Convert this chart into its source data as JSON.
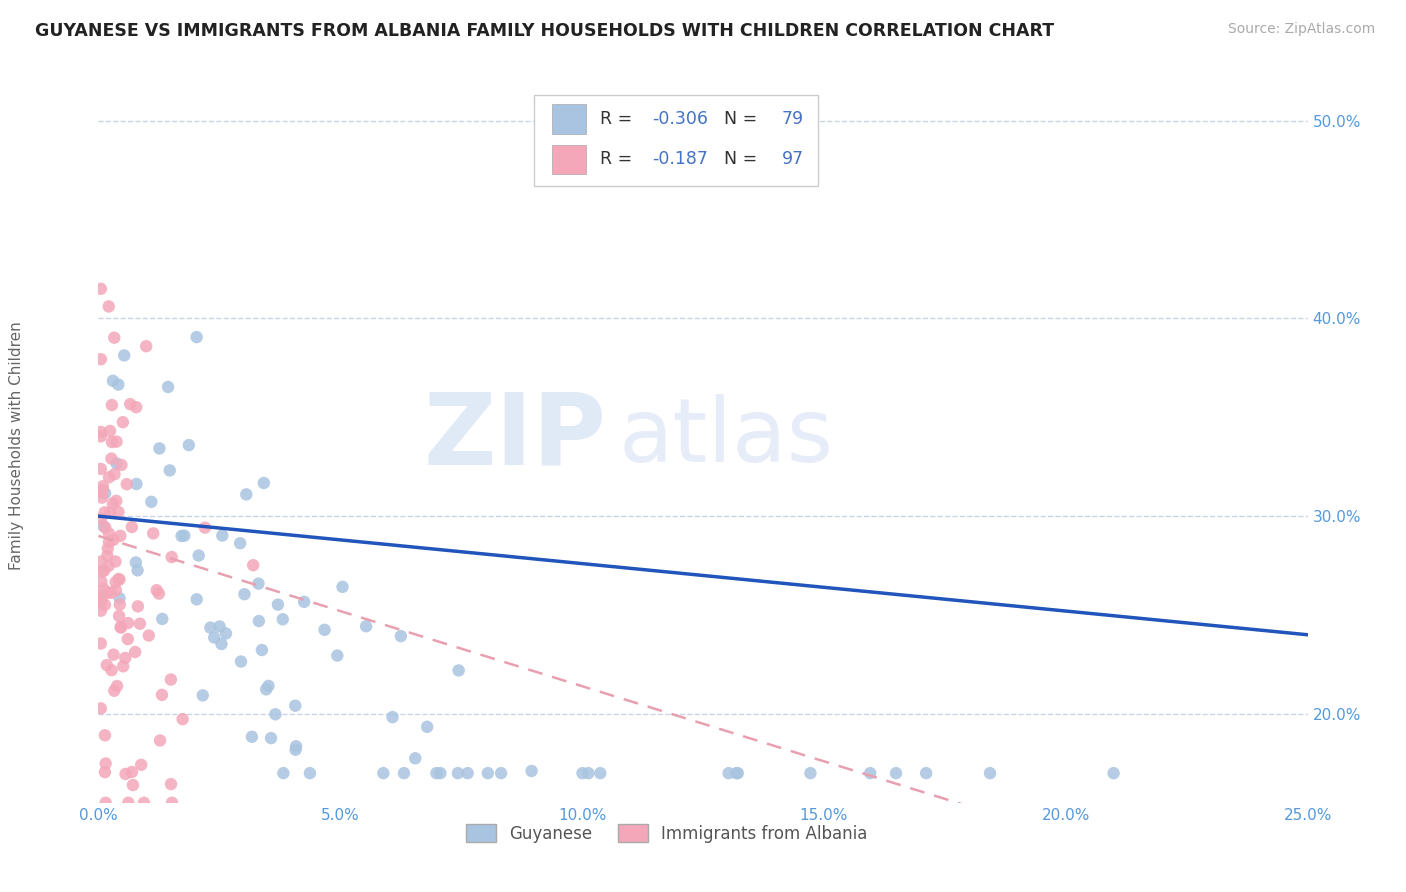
{
  "title": "GUYANESE VS IMMIGRANTS FROM ALBANIA FAMILY HOUSEHOLDS WITH CHILDREN CORRELATION CHART",
  "source": "Source: ZipAtlas.com",
  "ylabel": "Family Households with Children",
  "xlim": [
    0.0,
    0.25
  ],
  "ylim": [
    0.155,
    0.525
  ],
  "xticks": [
    0.0,
    0.05,
    0.1,
    0.15,
    0.2,
    0.25
  ],
  "yticks": [
    0.2,
    0.3,
    0.4,
    0.5
  ],
  "xtick_labels": [
    "0.0%",
    "5.0%",
    "10.0%",
    "15.0%",
    "20.0%",
    "25.0%"
  ],
  "ytick_labels": [
    "20.0%",
    "30.0%",
    "40.0%",
    "50.0%"
  ],
  "guyanese_color": "#a8c4e0",
  "albania_color": "#f4a7b9",
  "guyanese_line_color": "#2255bb",
  "albania_line_color": "#e8a0b0",
  "R_guyanese": -0.306,
  "N_guyanese": 79,
  "R_albania": -0.187,
  "N_albania": 97,
  "legend_label_1": "Guyanese",
  "legend_label_2": "Immigrants from Albania",
  "background_color": "#ffffff",
  "grid_color": "#c8d4e8"
}
